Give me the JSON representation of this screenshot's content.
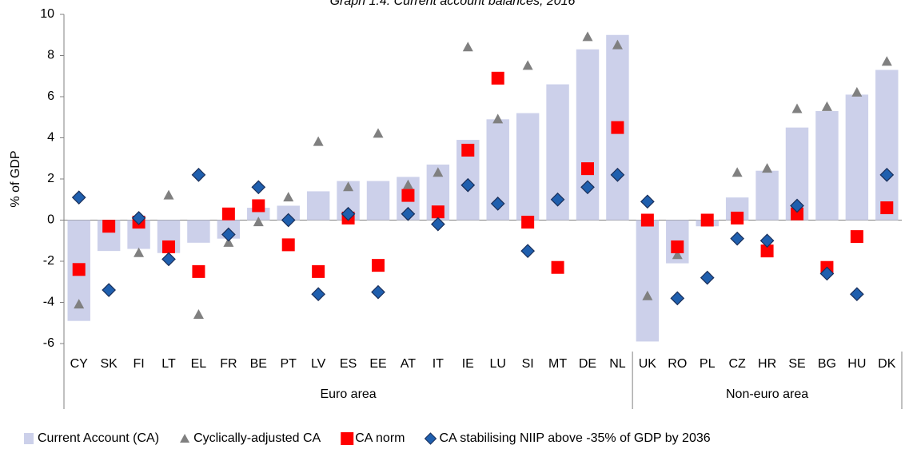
{
  "chart_data": {
    "type": "bar",
    "title": "Graph 1.4: Current account balances, 2016",
    "y_label": "% of GDP",
    "categories": [
      "CY",
      "SK",
      "FI",
      "LT",
      "EL",
      "FR",
      "BE",
      "PT",
      "LV",
      "ES",
      "EE",
      "AT",
      "IT",
      "IE",
      "LU",
      "SI",
      "MT",
      "DE",
      "NL",
      "UK",
      "RO",
      "PL",
      "CZ",
      "HR",
      "SE",
      "BG",
      "HU",
      "DK"
    ],
    "groups": [
      {
        "name": "Euro area",
        "from": "CY",
        "to": "NL"
      },
      {
        "name": "Non-euro area",
        "from": "UK",
        "to": "DK"
      }
    ],
    "series": [
      {
        "name": "Current Account (CA)",
        "marker": "bar",
        "color": "#ccd0ea",
        "values": [
          -4.9,
          -1.5,
          -1.4,
          -1.6,
          -1.1,
          -0.9,
          0.6,
          0.7,
          1.4,
          1.9,
          1.9,
          2.1,
          2.7,
          3.9,
          4.9,
          5.2,
          6.6,
          8.3,
          9.0,
          -5.9,
          -2.1,
          -0.3,
          1.1,
          2.4,
          4.5,
          5.3,
          6.1,
          7.3
        ]
      },
      {
        "name": "Cyclically-adjusted CA",
        "marker": "triangle",
        "color": "#808080",
        "values": [
          -4.1,
          null,
          -1.6,
          1.2,
          -4.6,
          -1.1,
          -0.1,
          1.1,
          3.8,
          1.6,
          4.2,
          1.7,
          2.3,
          8.4,
          4.9,
          7.5,
          null,
          8.9,
          8.5,
          -3.7,
          -1.7,
          0.0,
          2.3,
          2.5,
          5.4,
          5.5,
          6.2,
          7.7
        ]
      },
      {
        "name": "CA norm",
        "marker": "square",
        "color": "#ff0000",
        "values": [
          -2.4,
          -0.3,
          -0.1,
          -1.3,
          -2.5,
          0.3,
          0.7,
          -1.2,
          -2.5,
          0.1,
          -2.2,
          1.2,
          0.4,
          3.4,
          6.9,
          -0.1,
          -2.3,
          2.5,
          4.5,
          0.0,
          -1.3,
          0.0,
          0.1,
          -1.5,
          0.3,
          -2.3,
          -0.8,
          0.6
        ]
      },
      {
        "name": "CA stabilising NIIP above -35% of GDP by 2036",
        "marker": "diamond",
        "color": "#1f5fae",
        "values": [
          1.1,
          -3.4,
          0.1,
          -1.9,
          2.2,
          -0.7,
          1.6,
          0.0,
          -3.6,
          0.3,
          -3.5,
          0.3,
          -0.2,
          1.7,
          0.8,
          -1.5,
          1.0,
          1.6,
          2.2,
          0.9,
          -3.8,
          -2.8,
          -0.9,
          -1.0,
          0.7,
          -2.6,
          -3.6,
          2.2
        ]
      }
    ],
    "ylim": [
      -6,
      10
    ],
    "yticks": [
      -6,
      -4,
      -2,
      0,
      2,
      4,
      6,
      8,
      10
    ],
    "grid": false,
    "legend": "bottom"
  }
}
